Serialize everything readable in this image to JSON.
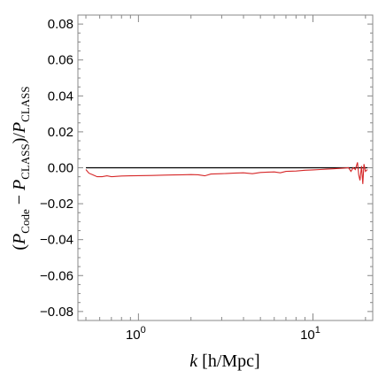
{
  "chart_data": {
    "type": "line",
    "x_scale": "log",
    "xlim": [
      0.45,
      22
    ],
    "ylim": [
      -0.085,
      0.085
    ],
    "y_ticks": [
      {
        "value": 0.08,
        "label": "0.08"
      },
      {
        "value": 0.06,
        "label": "0.06"
      },
      {
        "value": 0.04,
        "label": "0.04"
      },
      {
        "value": 0.02,
        "label": "0.02"
      },
      {
        "value": 0.0,
        "label": "0.00"
      },
      {
        "value": -0.02,
        "label": "−0.02"
      },
      {
        "value": -0.04,
        "label": "−0.04"
      },
      {
        "value": -0.06,
        "label": "−0.06"
      },
      {
        "value": -0.08,
        "label": "−0.08"
      }
    ],
    "x_ticks": [
      {
        "value": 1,
        "base": "10",
        "exp": "0"
      },
      {
        "value": 10,
        "base": "10",
        "exp": "1"
      }
    ],
    "xlabel": {
      "var": "k",
      "rest": " [h/Mpc]"
    },
    "ylabel": {
      "p1": "(",
      "P": "P",
      "sub1": "Code",
      "minus": " − ",
      "sub2": "CLASS",
      "p2": ")/"
    },
    "grid": false,
    "reference_line": {
      "y": 0,
      "color": "#000000"
    },
    "series": [
      {
        "color": "#d62728",
        "x": [
          0.5,
          0.52,
          0.55,
          0.58,
          0.62,
          0.66,
          0.7,
          0.75,
          0.8,
          0.9,
          1.0,
          1.2,
          1.4,
          1.6,
          1.8,
          2.0,
          2.2,
          2.4,
          2.6,
          3.0,
          3.5,
          4.0,
          4.5,
          5.0,
          5.5,
          6.0,
          6.5,
          7.0,
          8.0,
          9.0,
          10.0,
          11.0,
          12.0,
          13.0,
          14.0,
          15.0,
          16.0,
          16.5,
          17.0,
          17.5,
          18.0,
          18.3,
          18.6,
          19.0,
          19.3,
          19.6,
          20.0,
          20.5
        ],
        "y": [
          -0.001,
          -0.003,
          -0.004,
          -0.005,
          -0.005,
          -0.0045,
          -0.005,
          -0.0048,
          -0.0046,
          -0.0045,
          -0.0044,
          -0.0043,
          -0.0041,
          -0.004,
          -0.0039,
          -0.0038,
          -0.0039,
          -0.0045,
          -0.0035,
          -0.0033,
          -0.003,
          -0.0028,
          -0.0033,
          -0.0026,
          -0.0024,
          -0.0023,
          -0.0028,
          -0.002,
          -0.0018,
          -0.0014,
          -0.0012,
          -0.001,
          -0.0008,
          -0.0006,
          -0.0004,
          -0.0002,
          0.0,
          -0.002,
          0.0,
          -0.001,
          0.003,
          -0.004,
          -0.007,
          0.001,
          -0.009,
          0.002,
          -0.002,
          -0.001
        ]
      }
    ]
  }
}
